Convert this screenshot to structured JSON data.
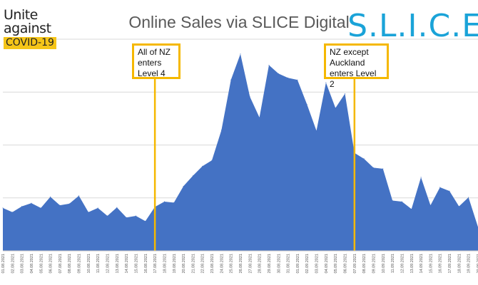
{
  "logo_left": {
    "line1": "Unite",
    "line2": "against",
    "tag": "COVID-19"
  },
  "logo_right": {
    "text": "S.L.I.C.E"
  },
  "colors": {
    "area": "#4472c4",
    "annotation": "#f5b800",
    "logo_tag_bg": "#f5c518",
    "slice_blue": "#1aa3d8",
    "grid": "#d9d9d9"
  },
  "annotations": [
    {
      "text": "All of NZ\nenters\nLevel 4",
      "x": "17.08.2021"
    },
    {
      "text": "NZ except\nAuckland\nenters Level 2",
      "x": "07.09.2021"
    }
  ],
  "chart_data": {
    "type": "area",
    "title": "Online Sales via SLICE Digital",
    "xlabel": "",
    "ylabel": "",
    "grid": true,
    "y_axis_labels": false,
    "legend": "none",
    "x": [
      "01.08.2021",
      "02.08.2021",
      "03.08.2021",
      "04.08.2021",
      "05.08.2021",
      "06.08.2021",
      "07.08.2021",
      "08.08.2021",
      "09.08.2021",
      "10.08.2021",
      "11.08.2021",
      "12.08.2021",
      "13.08.2021",
      "14.08.2021",
      "15.08.2021",
      "16.08.2021",
      "17.08.2021",
      "18.08.2021",
      "19.08.2021",
      "20.08.2021",
      "21.08.2021",
      "22.08.2021",
      "23.08.2021",
      "24.08.2021",
      "25.08.2021",
      "26.08.2021",
      "27.08.2021",
      "28.08.2021",
      "29.08.2021",
      "30.08.2021",
      "31.08.2021",
      "01.09.2021",
      "02.09.2021",
      "03.09.2021",
      "04.09.2021",
      "05.09.2021",
      "06.09.2021",
      "07.09.2021",
      "08.09.2021",
      "09.09.2021",
      "10.09.2021",
      "11.09.2021",
      "12.09.2021",
      "13.09.2021",
      "14.09.2021",
      "15.09.2021",
      "16.09.2021",
      "17.09.2021",
      "18.09.2021",
      "19.09.2021",
      "20.09.2021"
    ],
    "series": [
      {
        "values": [
          0.81,
          0.73,
          0.84,
          0.9,
          0.81,
          1.02,
          0.86,
          0.89,
          1.04,
          0.73,
          0.81,
          0.66,
          0.82,
          0.63,
          0.66,
          0.56,
          0.83,
          0.93,
          0.91,
          1.22,
          1.42,
          1.6,
          1.71,
          2.28,
          3.23,
          3.72,
          2.91,
          2.52,
          3.51,
          3.35,
          3.27,
          3.23,
          2.77,
          2.27,
          3.18,
          2.7,
          2.97,
          1.85,
          1.74,
          1.57,
          1.55,
          0.95,
          0.93,
          0.79,
          1.39,
          0.86,
          1.2,
          1.13,
          0.84,
          1.01,
          0.45
        ]
      }
    ],
    "ylim": [
      0,
      4
    ],
    "yticks": [
      0,
      1,
      2,
      3,
      4
    ]
  }
}
